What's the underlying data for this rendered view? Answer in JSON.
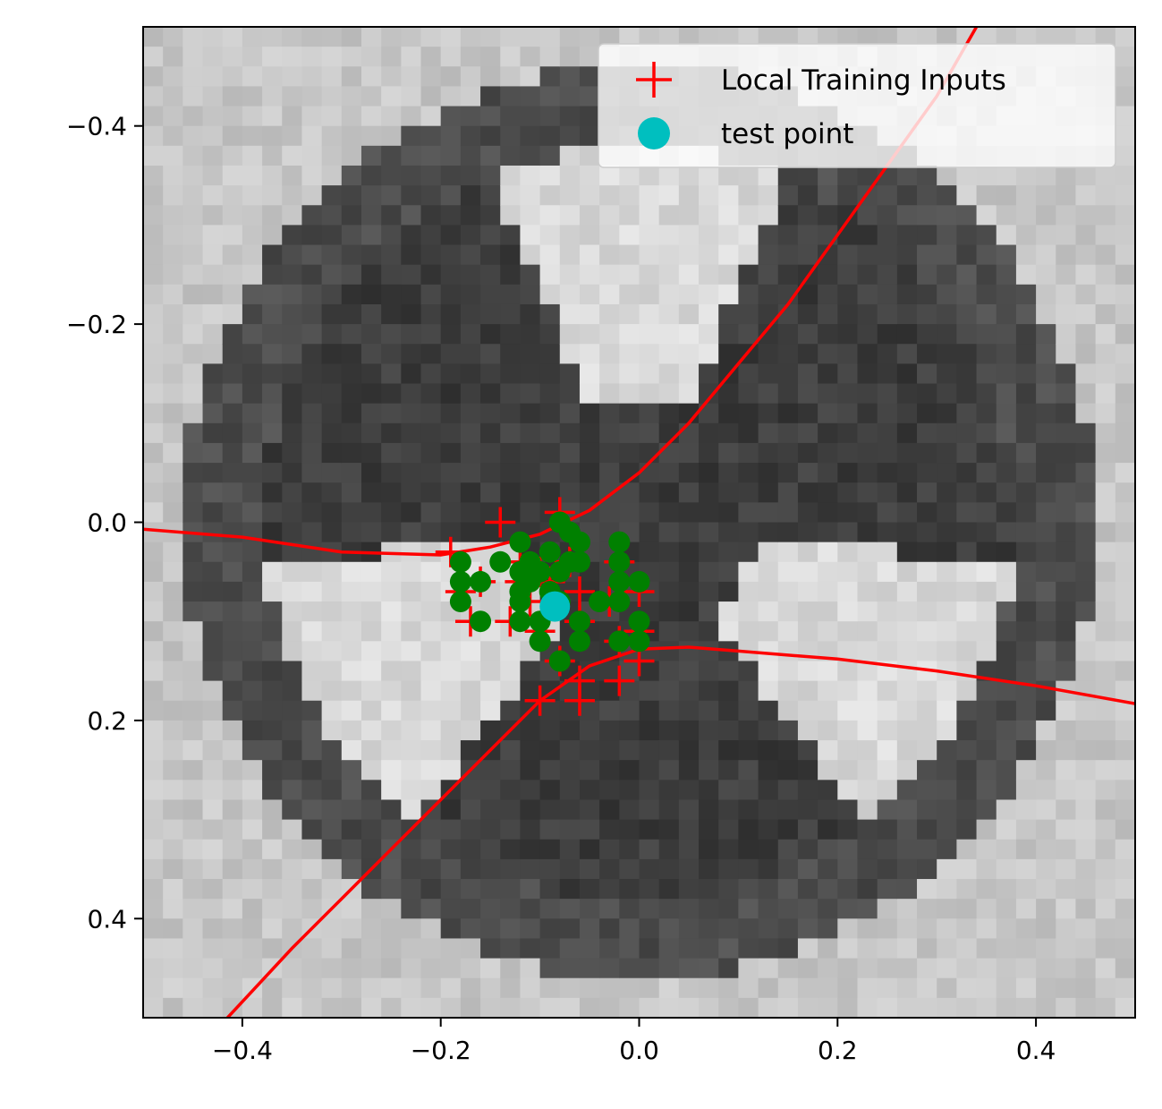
{
  "chart_data": {
    "type": "scatter",
    "title": "",
    "xlabel": "",
    "ylabel": "",
    "xlim": [
      -0.5,
      0.5
    ],
    "ylim": [
      0.5,
      -0.5
    ],
    "y_axis_inverted": true,
    "x_ticks": [
      -0.4,
      -0.2,
      0.0,
      0.2,
      0.4
    ],
    "y_ticks": [
      -0.4,
      -0.2,
      0.0,
      0.2,
      0.4
    ],
    "x_tick_labels": [
      "−0.4",
      "−0.2",
      "0.0",
      "0.2",
      "0.4"
    ],
    "y_tick_labels": [
      "−0.4",
      "−0.2",
      "0.0",
      "0.2",
      "0.4"
    ],
    "grid": false,
    "legend_placement": "top-right",
    "background": {
      "kind": "grayscale-image",
      "description_colors": {
        "dark": "#222222",
        "light": "#dddddd"
      }
    },
    "series": [
      {
        "name": "Local Training Inputs",
        "marker": "plus",
        "color": "#ff0000",
        "points": [
          [
            -0.14,
            0.0
          ],
          [
            -0.08,
            -0.01
          ],
          [
            -0.19,
            0.03
          ],
          [
            -0.12,
            0.04
          ],
          [
            -0.1,
            0.05
          ],
          [
            -0.09,
            0.06
          ],
          [
            -0.07,
            0.04
          ],
          [
            -0.02,
            0.04
          ],
          [
            -0.18,
            0.07
          ],
          [
            -0.16,
            0.06
          ],
          [
            -0.12,
            0.06
          ],
          [
            -0.11,
            0.08
          ],
          [
            -0.06,
            0.07
          ],
          [
            -0.03,
            0.08
          ],
          [
            0.0,
            0.07
          ],
          [
            -0.17,
            0.1
          ],
          [
            -0.13,
            0.1
          ],
          [
            -0.1,
            0.11
          ],
          [
            -0.06,
            0.1
          ],
          [
            -0.02,
            0.12
          ],
          [
            0.0,
            0.11
          ],
          [
            -0.08,
            0.14
          ],
          [
            -0.06,
            0.16
          ],
          [
            -0.02,
            0.16
          ],
          [
            -0.1,
            0.18
          ],
          [
            -0.06,
            0.18
          ],
          [
            0.0,
            0.14
          ]
        ]
      },
      {
        "name": "",
        "marker": "circle",
        "color": "#008000",
        "points": [
          [
            -0.12,
            0.02
          ],
          [
            -0.08,
            0.0
          ],
          [
            -0.07,
            0.01
          ],
          [
            -0.09,
            0.03
          ],
          [
            -0.06,
            0.02
          ],
          [
            -0.02,
            0.02
          ],
          [
            -0.14,
            0.04
          ],
          [
            -0.12,
            0.05
          ],
          [
            -0.11,
            0.04
          ],
          [
            -0.1,
            0.05
          ],
          [
            -0.08,
            0.05
          ],
          [
            -0.07,
            0.04
          ],
          [
            -0.06,
            0.04
          ],
          [
            -0.02,
            0.04
          ],
          [
            -0.18,
            0.04
          ],
          [
            -0.18,
            0.06
          ],
          [
            -0.16,
            0.06
          ],
          [
            -0.12,
            0.07
          ],
          [
            -0.11,
            0.06
          ],
          [
            -0.09,
            0.07
          ],
          [
            0.0,
            0.06
          ],
          [
            -0.02,
            0.06
          ],
          [
            -0.18,
            0.08
          ],
          [
            -0.12,
            0.08
          ],
          [
            -0.08,
            0.08
          ],
          [
            -0.04,
            0.08
          ],
          [
            -0.02,
            0.08
          ],
          [
            -0.16,
            0.1
          ],
          [
            -0.12,
            0.1
          ],
          [
            -0.1,
            0.1
          ],
          [
            -0.06,
            0.1
          ],
          [
            0.0,
            0.1
          ],
          [
            -0.1,
            0.12
          ],
          [
            -0.06,
            0.12
          ],
          [
            -0.02,
            0.12
          ],
          [
            0.0,
            0.12
          ],
          [
            -0.08,
            0.14
          ]
        ]
      },
      {
        "name": "test point",
        "marker": "circle",
        "color": "#00bfbf",
        "points": [
          [
            -0.085,
            0.085
          ]
        ]
      }
    ],
    "curves": [
      {
        "name": "",
        "color": "#ff0000",
        "points": [
          [
            -0.5,
            0.007
          ],
          [
            -0.4,
            0.015
          ],
          [
            -0.3,
            0.03
          ],
          [
            -0.2,
            0.033
          ],
          [
            -0.15,
            0.025
          ],
          [
            -0.1,
            0.012
          ],
          [
            -0.05,
            -0.012
          ],
          [
            0.0,
            -0.05
          ],
          [
            0.05,
            -0.1
          ],
          [
            0.1,
            -0.16
          ],
          [
            0.15,
            -0.22
          ],
          [
            0.2,
            -0.29
          ],
          [
            0.25,
            -0.36
          ],
          [
            0.3,
            -0.43
          ],
          [
            0.34,
            -0.5
          ]
        ]
      },
      {
        "name": "",
        "color": "#ff0000",
        "points": [
          [
            -0.415,
            0.5
          ],
          [
            -0.35,
            0.43
          ],
          [
            -0.3,
            0.38
          ],
          [
            -0.25,
            0.33
          ],
          [
            -0.2,
            0.28
          ],
          [
            -0.15,
            0.23
          ],
          [
            -0.1,
            0.18
          ],
          [
            -0.05,
            0.145
          ],
          [
            0.0,
            0.128
          ],
          [
            0.05,
            0.126
          ],
          [
            0.1,
            0.13
          ],
          [
            0.2,
            0.138
          ],
          [
            0.3,
            0.15
          ],
          [
            0.4,
            0.165
          ],
          [
            0.5,
            0.183
          ]
        ]
      }
    ]
  },
  "legend": {
    "entries": [
      {
        "label": "Local Training Inputs",
        "marker": "plus",
        "color": "#ff0000"
      },
      {
        "label": "test point",
        "marker": "circle",
        "color": "#00bfbf"
      }
    ]
  }
}
